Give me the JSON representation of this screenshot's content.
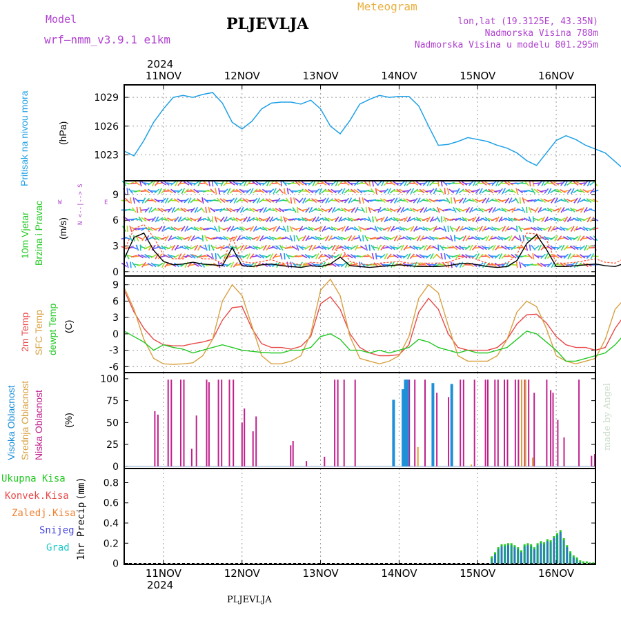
{
  "header": {
    "model_label": "Model",
    "model_name": "wrf–nmm_v3.9.1  e1km",
    "station": "PLJEVLJA",
    "product": "Meteogram",
    "lonlat": "lon,lat (19.3125E, 43.35N)",
    "altitude": "Nadmorska Visina 788m",
    "model_altitude": "Nadmorska Visina u modelu 801.295m",
    "footer_station": "PLJEVLJA",
    "credit": "made by Angel"
  },
  "colors": {
    "pressure": "#1ea0e6",
    "temp2m": "#e84848",
    "sfc": "#d8a040",
    "dewpt": "#22c822",
    "high": "#1e90d8",
    "mid": "#e0a030",
    "low": "#c0208c",
    "header_purple": "#b040d0",
    "header_orange": "#e8b040"
  },
  "chart_data": {
    "type": "meteogram",
    "year": "2024",
    "x_ticks": [
      "11NOV",
      "12NOV",
      "13NOV",
      "14NOV",
      "15NOV",
      "16NOV"
    ],
    "panels": [
      {
        "id": "pressure",
        "type": "line",
        "ylabel": "Pritisak na nivou mora",
        "unit": "(hPa)",
        "yticks": [
          1023,
          1026,
          1029
        ],
        "ylim": [
          1020.3,
          1030.3
        ],
        "x_start_day": 10.5,
        "step_hours": 3,
        "values": [
          1023.4,
          1022.9,
          1024.5,
          1026.4,
          1027.8,
          1029.0,
          1029.2,
          1029.0,
          1029.3,
          1029.5,
          1028.4,
          1026.4,
          1025.7,
          1026.5,
          1027.8,
          1028.4,
          1028.5,
          1028.5,
          1028.3,
          1028.7,
          1027.8,
          1026.0,
          1025.2,
          1026.6,
          1028.3,
          1028.8,
          1029.2,
          1029.0,
          1029.1,
          1029.1,
          1028.1,
          1026.0,
          1024.0,
          1024.1,
          1024.4,
          1024.8,
          1024.6,
          1024.4,
          1024.0,
          1023.7,
          1023.2,
          1022.4,
          1021.9,
          1023.2,
          1024.5,
          1025.0,
          1024.6,
          1024.0,
          1023.6,
          1023.2,
          1022.3,
          1021.4,
          1021.7,
          1022.8,
          1024.1,
          1024.6,
          1024.3,
          1024.6,
          1024.6,
          1023.1,
          1021.2
        ],
        "series": [
          {
            "name": "Pritisak na nivou mora",
            "color_key": "pressure"
          }
        ]
      },
      {
        "id": "wind",
        "type": "barbs",
        "ylabel1": "10m Vjetar",
        "ylabel2": "Brzina i Pravac",
        "unit": "(m/s)",
        "compass_ns": "N <--|--> S",
        "compass_w": "W",
        "compass_e": "E",
        "yticks": [
          0,
          3,
          6,
          9
        ],
        "ylim": [
          -0.5,
          10.6
        ],
        "x_start_day": 10.5,
        "step_hours": 3,
        "speed": [
          1.5,
          4.0,
          4.5,
          2.5,
          1.2,
          0.8,
          0.9,
          1.1,
          0.9,
          0.8,
          0.7,
          2.8,
          0.7,
          0.6,
          0.8,
          0.9,
          0.7,
          0.6,
          0.5,
          0.7,
          0.6,
          0.9,
          1.7,
          0.7,
          0.6,
          0.5,
          0.6,
          0.7,
          0.8,
          0.7,
          0.6,
          0.6,
          0.6,
          0.7,
          0.9,
          1.0,
          0.8,
          0.6,
          0.5,
          0.6,
          1.3,
          3.3,
          4.3,
          2.6,
          0.6,
          0.6,
          0.7,
          0.8,
          0.9,
          0.7,
          0.6,
          1.0,
          5.6,
          3.8,
          2.7,
          1.7,
          0.8,
          0.4,
          0.3,
          0.3,
          0.3
        ],
        "gust": [
          2.5,
          5.0,
          5.5,
          4.0,
          2.0,
          1.5,
          1.5,
          2.0,
          1.5,
          1.5,
          1.0,
          4.0,
          1.2,
          1.0,
          1.2,
          1.4,
          1.0,
          1.0,
          0.8,
          1.1,
          1.0,
          1.6,
          3.0,
          1.2,
          0.9,
          0.8,
          1.0,
          1.1,
          1.2,
          1.0,
          1.0,
          1.0,
          1.0,
          1.1,
          1.5,
          1.8,
          1.4,
          1.0,
          0.8,
          1.0,
          2.0,
          4.5,
          4.4,
          3.8,
          1.0,
          1.0,
          1.1,
          1.3,
          1.5,
          1.1,
          1.0,
          1.6,
          6.2,
          5.2,
          4.2,
          2.8,
          1.4,
          0.8,
          0.6,
          0.6,
          0.6
        ]
      },
      {
        "id": "temperature",
        "type": "line",
        "ylabel1": "2m Temp",
        "ylabel2": "SFC Temp",
        "ylabel3": "dewpt Temp",
        "unit": "(C)",
        "yticks": [
          -6,
          -3,
          0,
          3,
          6,
          9
        ],
        "ylim": [
          -7.1,
          10.6
        ],
        "x_start_day": 10.5,
        "step_hours": 3,
        "series": [
          {
            "name": "2m Temp",
            "color_key": "temp2m",
            "values": [
              8.0,
              4.0,
              1.0,
              -1.0,
              -2.0,
              -2.2,
              -2.2,
              -1.8,
              -1.5,
              -1.0,
              2.5,
              4.8,
              5.0,
              1.0,
              -1.8,
              -2.5,
              -2.5,
              -2.8,
              -2.3,
              -0.5,
              5.5,
              6.8,
              4.5,
              0.0,
              -2.5,
              -3.5,
              -4.0,
              -4.0,
              -3.8,
              -2.0,
              4.0,
              6.5,
              4.5,
              0.0,
              -2.5,
              -3.0,
              -3.0,
              -3.0,
              -2.5,
              -1.0,
              1.8,
              3.5,
              3.6,
              2.0,
              -0.5,
              -2.0,
              -2.5,
              -2.5,
              -3.0,
              -2.5,
              1.0,
              3.5,
              4.0,
              2.0,
              0.0,
              -1.5,
              -2.0,
              -2.0,
              1.5,
              3.5,
              4.5
            ]
          },
          {
            "name": "SFC Temp",
            "color_key": "sfc",
            "values": [
              8.5,
              4.5,
              -1.0,
              -4.5,
              -5.5,
              -5.6,
              -5.5,
              -5.3,
              -4.0,
              -1.0,
              6.0,
              9.0,
              7.0,
              1.5,
              -4.0,
              -5.5,
              -5.5,
              -5.0,
              -4.0,
              0.0,
              8.0,
              10.0,
              7.0,
              -0.5,
              -4.5,
              -5.0,
              -5.5,
              -5.0,
              -4.0,
              -0.5,
              6.5,
              9.0,
              7.5,
              1.5,
              -4.0,
              -5.0,
              -5.0,
              -5.0,
              -4.0,
              -1.0,
              4.0,
              6.0,
              5.0,
              1.0,
              -4.0,
              -5.0,
              -5.5,
              -5.0,
              -4.5,
              -1.0,
              4.5,
              6.5,
              5.5,
              1.0,
              -3.0,
              -5.0,
              -6.0,
              -5.0,
              1.0,
              6.0,
              8.0
            ]
          },
          {
            "name": "dewpt Temp",
            "color_key": "dewpt",
            "values": [
              0.5,
              -0.5,
              -1.5,
              -3.0,
              -2.0,
              -2.5,
              -2.8,
              -3.5,
              -3.0,
              -2.5,
              -2.0,
              -2.5,
              -3.0,
              -3.2,
              -3.4,
              -3.5,
              -3.5,
              -3.0,
              -3.0,
              -2.5,
              -0.5,
              0.0,
              -1.0,
              -3.0,
              -3.0,
              -3.5,
              -3.0,
              -3.5,
              -3.0,
              -2.5,
              -1.0,
              -1.5,
              -2.5,
              -3.0,
              -3.5,
              -3.0,
              -3.5,
              -3.5,
              -3.0,
              -2.5,
              -1.0,
              0.5,
              0.0,
              -1.5,
              -3.0,
              -5.0,
              -5.0,
              -4.5,
              -4.0,
              -3.5,
              -2.0,
              0.0,
              0.0,
              -1.5,
              -3.5,
              -4.0,
              -4.0,
              -3.5,
              -2.5,
              -1.0,
              -3.5
            ]
          }
        ]
      },
      {
        "id": "clouds",
        "type": "bar",
        "ylabel1": "Visoka Oblacnost",
        "ylabel2": "Srednja Oblacnost",
        "ylabel3": "Niska Oblacnost",
        "unit": "(%)",
        "yticks": [
          0,
          25,
          50,
          75,
          100
        ],
        "ylim": [
          -2.5,
          107
        ],
        "series": [
          {
            "name": "Niska Oblacnost",
            "color_key": "low",
            "bars": [
              [
                10.89,
                63
              ],
              [
                10.93,
                59
              ],
              [
                11.06,
                99
              ],
              [
                11.1,
                99
              ],
              [
                11.22,
                99
              ],
              [
                11.26,
                99
              ],
              [
                11.36,
                20
              ],
              [
                11.42,
                58
              ],
              [
                11.55,
                99
              ],
              [
                11.58,
                96
              ],
              [
                11.7,
                99
              ],
              [
                11.74,
                99
              ],
              [
                11.84,
                99
              ],
              [
                11.89,
                99
              ],
              [
                12.0,
                50
              ],
              [
                12.03,
                66
              ],
              [
                12.14,
                40
              ],
              [
                12.18,
                57
              ],
              [
                12.62,
                24
              ],
              [
                12.65,
                29
              ],
              [
                12.82,
                6
              ],
              [
                13.05,
                11
              ],
              [
                13.18,
                99
              ],
              [
                13.22,
                99
              ],
              [
                13.3,
                99
              ],
              [
                13.44,
                99
              ],
              [
                14.09,
                99
              ],
              [
                14.1,
                99
              ],
              [
                14.13,
                99
              ],
              [
                14.2,
                99
              ],
              [
                14.33,
                99
              ],
              [
                14.48,
                84
              ],
              [
                14.63,
                79
              ],
              [
                14.78,
                99
              ],
              [
                14.82,
                99
              ],
              [
                14.96,
                99
              ],
              [
                15.1,
                99
              ],
              [
                15.13,
                99
              ],
              [
                15.22,
                99
              ],
              [
                15.26,
                99
              ],
              [
                15.34,
                99
              ],
              [
                15.38,
                99
              ],
              [
                15.48,
                99
              ],
              [
                15.52,
                99
              ],
              [
                15.6,
                99
              ],
              [
                15.65,
                99
              ],
              [
                15.72,
                84
              ],
              [
                15.88,
                99
              ],
              [
                15.93,
                87
              ],
              [
                15.96,
                84
              ],
              [
                16.02,
                53
              ],
              [
                16.1,
                33
              ],
              [
                16.29,
                99
              ],
              [
                16.45,
                12
              ],
              [
                16.49,
                14
              ]
            ]
          },
          {
            "name": "Srednja Oblacnost",
            "color_key": "mid",
            "bars": [
              [
                14.24,
                22
              ],
              [
                14.92,
                2
              ],
              [
                15.56,
                99
              ],
              [
                15.61,
                99
              ],
              [
                15.7,
                10
              ]
            ]
          },
          {
            "name": "Visoka Oblacnost",
            "color_key": "high",
            "bars": [
              [
                13.93,
                76
              ],
              [
                14.05,
                88
              ],
              [
                14.08,
                99
              ],
              [
                14.11,
                99
              ],
              [
                14.43,
                95
              ],
              [
                14.67,
                94
              ]
            ]
          }
        ]
      },
      {
        "id": "precip",
        "type": "bar",
        "ylabel1": "1hr Precip",
        "unit": "(mm)",
        "legend": [
          "Ukupna Kisa",
          "Konvek.Kisa",
          "Zaledj.Kisa",
          "Snijeg",
          "Grad"
        ],
        "legend_colors": [
          "#22c822",
          "#e84848",
          "#f08030",
          "#4848e0",
          "#20c8c8"
        ],
        "yticks": [
          0,
          0.2,
          0.4,
          0.6,
          0.8
        ],
        "ylim": [
          -0.01,
          0.94
        ],
        "x_start_day": 15.18,
        "step_hours": 1,
        "values": [
          0.07,
          0.11,
          0.16,
          0.19,
          0.19,
          0.2,
          0.2,
          0.18,
          0.16,
          0.13,
          0.19,
          0.2,
          0.19,
          0.16,
          0.2,
          0.22,
          0.21,
          0.24,
          0.23,
          0.27,
          0.3,
          0.33,
          0.25,
          0.18,
          0.12,
          0.08,
          0.06,
          0.03,
          0.02,
          0.02,
          0.01,
          0.01
        ]
      }
    ]
  }
}
